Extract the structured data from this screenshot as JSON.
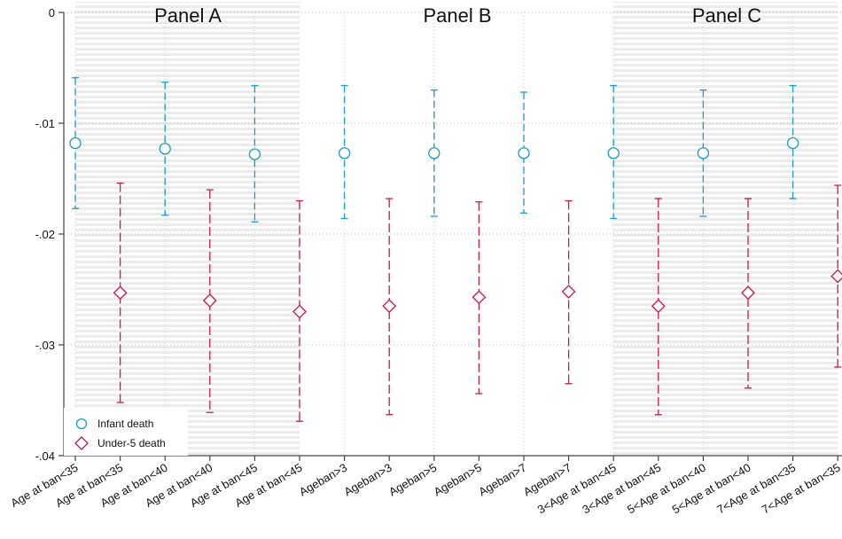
{
  "chart_data": {
    "type": "scatter",
    "panels": [
      "Panel A",
      "Panel B",
      "Panel C"
    ],
    "categories": [
      "Age at ban<35",
      "Age at ban<35",
      "Age at ban<40",
      "Age at ban<40",
      "Age at ban<45",
      "Age at ban<45",
      "Ageban>3",
      "Ageban>3",
      "Ageban>5",
      "Ageban>5",
      "Ageban>7",
      "Ageban>7",
      "3<Age at ban<45",
      "3<Age at ban<45",
      "5<Age at ban<40",
      "5<Age at ban<40",
      "7<Age at ban<35",
      "7<Age at ban<35"
    ],
    "ylim": [
      -0.04,
      0
    ],
    "yticks": [
      {
        "v": 0,
        "label": "0"
      },
      {
        "v": -0.01,
        "label": "-.01"
      },
      {
        "v": -0.02,
        "label": "-.02"
      },
      {
        "v": -0.03,
        "label": "-.03"
      },
      {
        "v": -0.04,
        "label": "-.04"
      }
    ],
    "series": [
      {
        "name": "Infant death",
        "color": "#1a9ac9",
        "marker": "circle",
        "positions": [
          0,
          2,
          4,
          6,
          8,
          10,
          12,
          14,
          16
        ],
        "values": [
          -0.0118,
          -0.0123,
          -0.0128,
          -0.0127,
          -0.0127,
          -0.0127,
          -0.0127,
          -0.0127,
          -0.0118
        ],
        "ci_low": [
          -0.0177,
          -0.0183,
          -0.0189,
          -0.0186,
          -0.0184,
          -0.0181,
          -0.0186,
          -0.0184,
          -0.0168
        ],
        "ci_high": [
          -0.0059,
          -0.0063,
          -0.0066,
          -0.0066,
          -0.007,
          -0.0072,
          -0.0066,
          -0.007,
          -0.0066
        ]
      },
      {
        "name": "Under-5 death",
        "color": "#d1164a",
        "marker": "diamond",
        "positions": [
          1,
          3,
          5,
          7,
          9,
          11,
          13,
          15,
          17
        ],
        "values": [
          -0.0253,
          -0.026,
          -0.027,
          -0.0265,
          -0.0257,
          -0.0252,
          -0.0265,
          -0.0253,
          -0.0238
        ],
        "ci_low": [
          -0.0352,
          -0.0361,
          -0.0369,
          -0.0363,
          -0.0344,
          -0.0335,
          -0.0363,
          -0.0339,
          -0.032
        ],
        "ci_high": [
          -0.0154,
          -0.016,
          -0.017,
          -0.0168,
          -0.0171,
          -0.017,
          -0.0168,
          -0.0168,
          -0.0156
        ]
      }
    ],
    "shaded_panels": [
      [
        0,
        5
      ],
      [
        12,
        17
      ]
    ],
    "grid": true,
    "legend_position": "bottom-left"
  }
}
